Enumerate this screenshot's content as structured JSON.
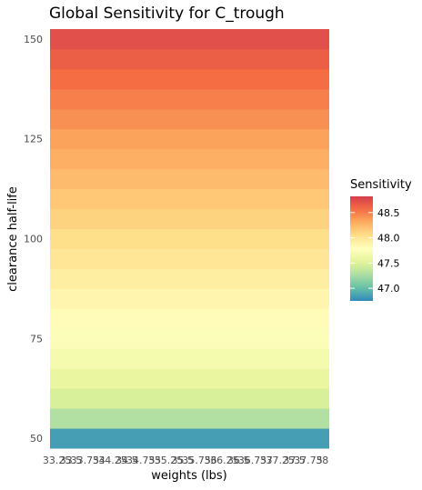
{
  "chart_data": {
    "type": "heatmap",
    "title": "Global Sensitivity for C_trough",
    "xlabel": "weights (lbs)",
    "ylabel": "clearance half-life",
    "x_tick_labels": [
      "33.25",
      "33.5",
      "33.75",
      "34",
      "34.25",
      "34.5",
      "34.75",
      "35",
      "35.25",
      "35.5",
      "35.75",
      "36",
      "36.25",
      "36.5",
      "36.75",
      "37",
      "37.25",
      "37.5",
      "37.75",
      "38"
    ],
    "y_ticks": [
      50,
      75,
      100,
      125,
      150
    ],
    "ylim": [
      47.5,
      152.5
    ],
    "y_rows": [
      50,
      55,
      60,
      65,
      70,
      75,
      80,
      85,
      90,
      95,
      100,
      105,
      110,
      115,
      120,
      125,
      130,
      135,
      140,
      145,
      150
    ],
    "values": [
      46.85,
      47.3,
      47.47,
      47.58,
      47.67,
      47.74,
      47.81,
      47.87,
      47.93,
      47.99,
      48.05,
      48.11,
      48.17,
      48.23,
      48.29,
      48.35,
      48.42,
      48.49,
      48.56,
      48.64,
      48.72
    ],
    "grid": true,
    "legend": {
      "title": "Sensitivity",
      "position": "right",
      "ticks": [
        47.0,
        47.5,
        48.0,
        48.5
      ],
      "tick_labels": [
        "47.0",
        "47.5",
        "48.0",
        "48.5"
      ],
      "range": [
        46.75,
        48.82
      ]
    },
    "palette": [
      "#3288bd",
      "#66c2a5",
      "#abdda4",
      "#e6f598",
      "#ffffbf",
      "#fee08b",
      "#fdae61",
      "#f46d43",
      "#d53e4f"
    ]
  }
}
